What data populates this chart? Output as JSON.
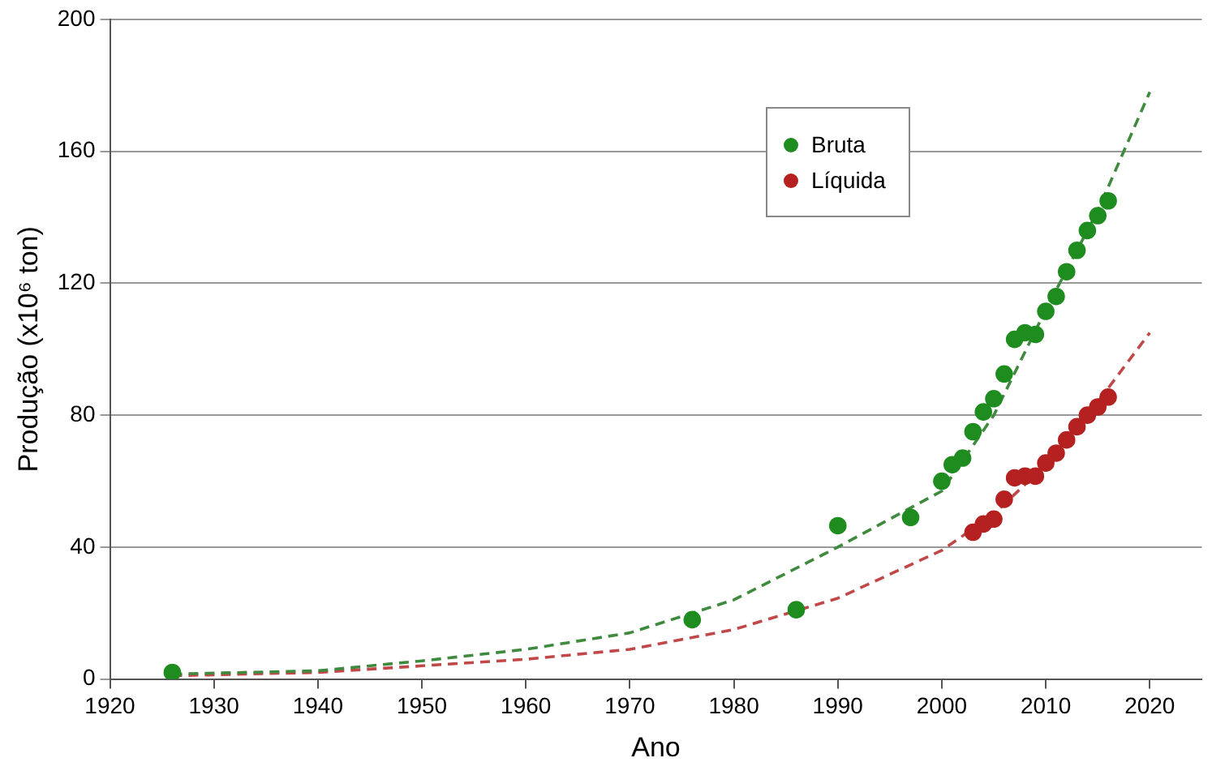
{
  "chart_data": {
    "type": "scatter",
    "xlabel": "Ano",
    "ylabel": "Produção (x10⁶ ton)",
    "xlim": [
      1920,
      2025
    ],
    "ylim": [
      0,
      200
    ],
    "xticks": [
      1920,
      1930,
      1940,
      1950,
      1960,
      1970,
      1980,
      1990,
      2000,
      2010,
      2020
    ],
    "yticks": [
      0,
      40,
      80,
      120,
      160,
      200
    ],
    "grid": "y",
    "legend": "top right",
    "series": [
      {
        "name": "Bruta",
        "color": "#1e8c1e",
        "marker": "circle",
        "x": [
          1926,
          1976,
          1986,
          1990,
          1997,
          2000,
          2001,
          2002,
          2003,
          2004,
          2005,
          2006,
          2007,
          2008,
          2009,
          2010,
          2011,
          2012,
          2013,
          2014,
          2015,
          2016
        ],
        "values": [
          2,
          18,
          21,
          46.5,
          49,
          60,
          65,
          67,
          75,
          81,
          85,
          92.5,
          103,
          105,
          104.5,
          111.5,
          116,
          123.5,
          130,
          136,
          140.5,
          145
        ]
      },
      {
        "name": "Líquida",
        "color": "#b52020",
        "marker": "circle",
        "x": [
          2003,
          2004,
          2005,
          2006,
          2007,
          2008,
          2009,
          2010,
          2011,
          2012,
          2013,
          2014,
          2015,
          2016
        ],
        "values": [
          44.5,
          47,
          48.5,
          54.5,
          61,
          61.5,
          61.5,
          65.5,
          68.5,
          72.5,
          76.5,
          80,
          82.5,
          85.5
        ]
      },
      {
        "type": "line",
        "color": "#3f8a3f",
        "marker": "none",
        "line_style": "dashed",
        "x": [
          1926,
          1940,
          1950,
          1960,
          1970,
          1980,
          1990,
          2000,
          2005,
          2010,
          2015,
          2020
        ],
        "values": [
          1.5,
          2.5,
          5.5,
          9,
          14,
          24,
          40,
          57,
          80,
          112,
          142,
          178
        ]
      },
      {
        "type": "line",
        "color": "#c04848",
        "marker": "none",
        "line_style": "dashed",
        "x": [
          1926,
          1940,
          1950,
          1960,
          1970,
          1980,
          1990,
          2000,
          2005,
          2010,
          2015,
          2020
        ],
        "values": [
          1,
          2,
          4,
          6,
          9,
          15,
          24.5,
          39,
          50,
          65,
          84,
          105
        ]
      }
    ]
  }
}
